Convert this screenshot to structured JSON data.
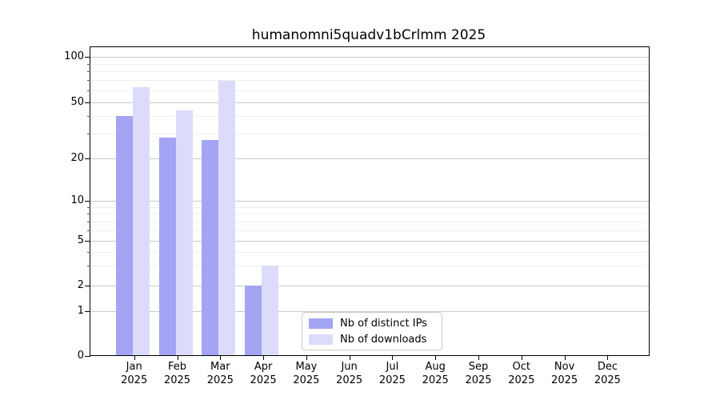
{
  "figure_title": "humanomni5quadv1bCrlmm 2025",
  "chart_data": {
    "type": "bar",
    "title": "humanomni5quadv1bCrlmm 2025",
    "categories": [
      "Jan",
      "Feb",
      "Mar",
      "Apr",
      "May",
      "Jun",
      "Jul",
      "Aug",
      "Sep",
      "Oct",
      "Nov",
      "Dec"
    ],
    "x_year_label": "2025",
    "series": [
      {
        "name": "Nb of distinct IPs",
        "color": "#a4a4f4",
        "values": [
          40,
          28,
          27,
          2,
          0,
          0,
          0,
          0,
          0,
          0,
          0,
          0
        ]
      },
      {
        "name": "Nb of downloads",
        "color": "#dcdcfa",
        "values": [
          63,
          44,
          69,
          3,
          0,
          0,
          0,
          0,
          0,
          0,
          0,
          0
        ]
      }
    ],
    "y_axis": {
      "major_ticks": [
        100,
        50,
        20,
        10,
        5,
        2,
        1,
        0
      ],
      "minor_ticks": [
        90,
        80,
        70,
        60,
        40,
        30,
        9,
        8,
        7,
        6,
        4,
        3
      ],
      "scale": "log-like with linear segment near zero",
      "ylim": [
        0,
        100
      ]
    },
    "legend": {
      "entries": [
        "Nb of distinct IPs",
        "Nb of downloads"
      ],
      "position": "lower center"
    },
    "grid": true
  },
  "colors": {
    "bar_ips": "#a4a4f4",
    "bar_downloads": "#dcdcfa",
    "grid_major": "#c9c9c9",
    "grid_minor": "#efefef",
    "spine": "#000000",
    "legend_border": "#cccccc"
  }
}
